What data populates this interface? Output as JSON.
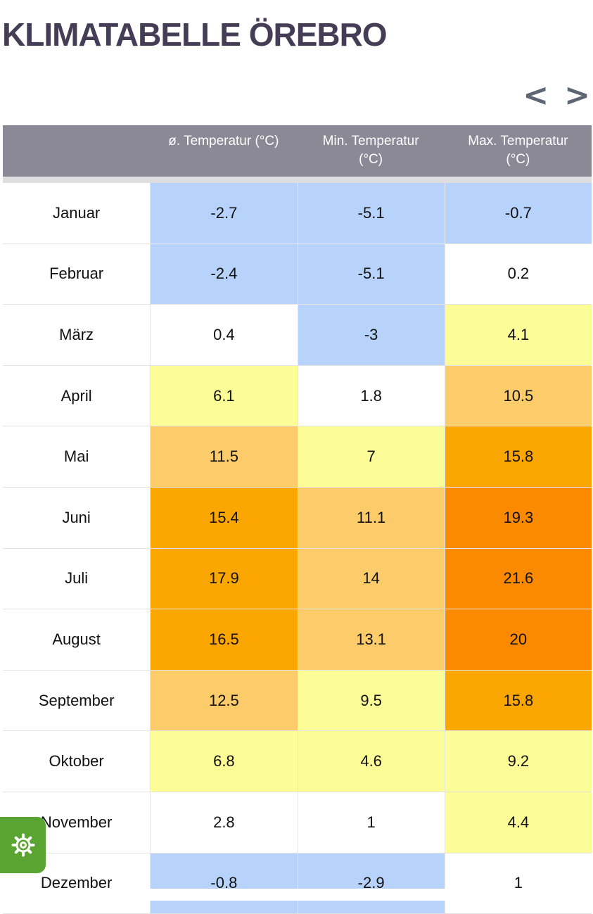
{
  "page": {
    "title": "KLIMATABELLE ÖREBRO"
  },
  "nav": {
    "prev": "<",
    "next": ">"
  },
  "table": {
    "headers": [
      "",
      "ø. Temperatur (°C)",
      "Min. Temperatur (°C)",
      "Max. Temperatur (°C)"
    ],
    "rows": [
      {
        "month": "Januar",
        "avg": "-2.7",
        "min": "-5.1",
        "max": "-0.7"
      },
      {
        "month": "Februar",
        "avg": "-2.4",
        "min": "-5.1",
        "max": "0.2"
      },
      {
        "month": "März",
        "avg": "0.4",
        "min": "-3",
        "max": "4.1"
      },
      {
        "month": "April",
        "avg": "6.1",
        "min": "1.8",
        "max": "10.5"
      },
      {
        "month": "Mai",
        "avg": "11.5",
        "min": "7",
        "max": "15.8"
      },
      {
        "month": "Juni",
        "avg": "15.4",
        "min": "11.1",
        "max": "19.3"
      },
      {
        "month": "Juli",
        "avg": "17.9",
        "min": "14",
        "max": "21.6"
      },
      {
        "month": "August",
        "avg": "16.5",
        "min": "13.1",
        "max": "20"
      },
      {
        "month": "September",
        "avg": "12.5",
        "min": "9.5",
        "max": "15.8"
      },
      {
        "month": "Oktober",
        "avg": "6.8",
        "min": "4.6",
        "max": "9.2"
      },
      {
        "month": "November",
        "avg": "2.8",
        "min": "1",
        "max": "4.4"
      },
      {
        "month": "Dezember",
        "avg": "-0.8",
        "min": "-2.9",
        "max": "1"
      }
    ]
  },
  "colors": {
    "title": "#453d55",
    "header_bg": "#8c8996",
    "cold": "#b8d3fb",
    "neutral": "#ffffff",
    "mild": "#fdfd98",
    "warm": "#fdcc6a",
    "hot": "#fca600",
    "hotter": "#fc8a00",
    "settings_button": "#5aa431"
  },
  "icons": {
    "settings": "gear-icon"
  }
}
